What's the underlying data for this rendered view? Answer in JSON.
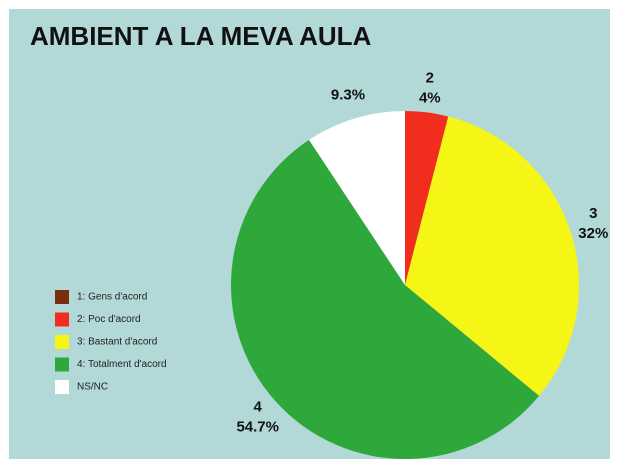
{
  "chart_data": {
    "type": "pie",
    "title": "AMBIENT A LA MEVA AULA",
    "categories": [
      "1: Gens d'acord",
      "2: Poc d'acord",
      "3: Bastant d'acord",
      "4: Totalment d'acord",
      "NS/NC"
    ],
    "values": [
      0,
      4,
      32,
      54.7,
      9.3
    ],
    "value_labels": [
      null,
      "4%",
      "32%",
      "54.7%",
      "9.3%"
    ],
    "slice_labels": [
      null,
      "2",
      "3",
      "4",
      null
    ],
    "colors": [
      "#7b2d12",
      "#f22d1d",
      "#f5f516",
      "#2ea83a",
      "#ffffff"
    ],
    "legend": "left"
  }
}
